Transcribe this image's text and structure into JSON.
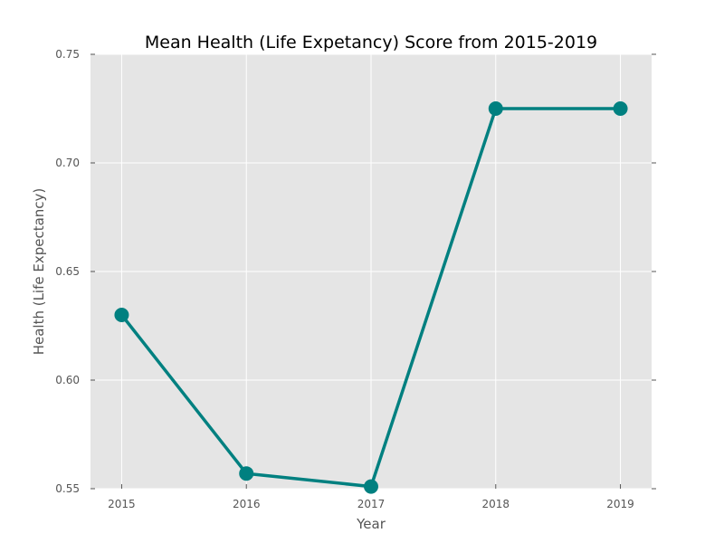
{
  "chart_data": {
    "type": "line",
    "title": "Mean Health (Life Expetancy) Score from 2015-2019",
    "xlabel": "Year",
    "ylabel": "Health (Life Expectancy)",
    "x": [
      2015,
      2016,
      2017,
      2018,
      2019
    ],
    "series": [
      {
        "values": [
          0.63,
          0.557,
          0.551,
          0.725,
          0.725
        ],
        "color": "#008080"
      }
    ],
    "xticks": [
      "2015",
      "2016",
      "2017",
      "2018",
      "2019"
    ],
    "yticks": [
      "0.55",
      "0.60",
      "0.65",
      "0.70",
      "0.75"
    ],
    "xlim": [
      2014.75,
      2019.25
    ],
    "ylim": [
      0.55,
      0.75
    ],
    "grid": true,
    "legend": "none",
    "colors": {
      "plot_background": "#e5e5e5",
      "grid": "#ffffff",
      "tick_text": "#555555",
      "title_text": "#000000"
    }
  }
}
